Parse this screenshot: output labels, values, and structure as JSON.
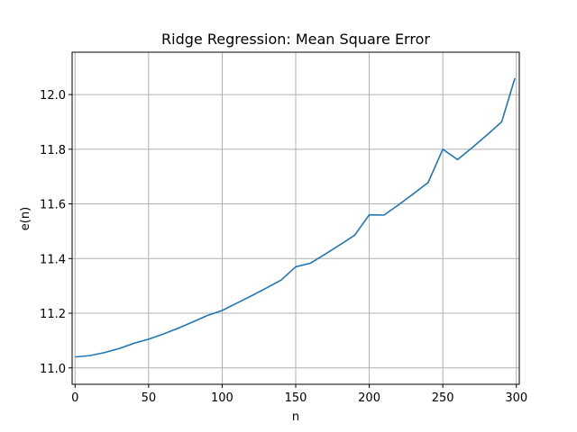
{
  "chart_data": {
    "type": "line",
    "title": "Ridge Regression: Mean Square Error",
    "xlabel": "n",
    "ylabel": "e(n)",
    "xlim": [
      -2,
      302
    ],
    "ylim": [
      10.94,
      12.155
    ],
    "xticks": [
      0,
      50,
      100,
      150,
      200,
      250,
      300
    ],
    "yticks": [
      11.0,
      11.2,
      11.4,
      11.6,
      11.8,
      12.0
    ],
    "ytick_labels": [
      "11.0",
      "11.2",
      "11.4",
      "11.6",
      "11.8",
      "12.0"
    ],
    "grid": true,
    "legend": null,
    "series": [
      {
        "color": "#1f77b4",
        "x": [
          0,
          10,
          20,
          30,
          40,
          50,
          60,
          70,
          80,
          90,
          100,
          110,
          120,
          130,
          140,
          150,
          160,
          170,
          180,
          190,
          200,
          210,
          220,
          230,
          240,
          250,
          260,
          270,
          280,
          290,
          299
        ],
        "y": [
          11.04,
          11.045,
          11.056,
          11.071,
          11.09,
          11.105,
          11.124,
          11.145,
          11.168,
          11.192,
          11.21,
          11.237,
          11.264,
          11.292,
          11.321,
          11.37,
          11.383,
          11.416,
          11.45,
          11.485,
          11.56,
          11.559,
          11.597,
          11.637,
          11.678,
          11.8,
          11.762,
          11.806,
          11.852,
          11.9,
          12.06
        ]
      }
    ]
  }
}
